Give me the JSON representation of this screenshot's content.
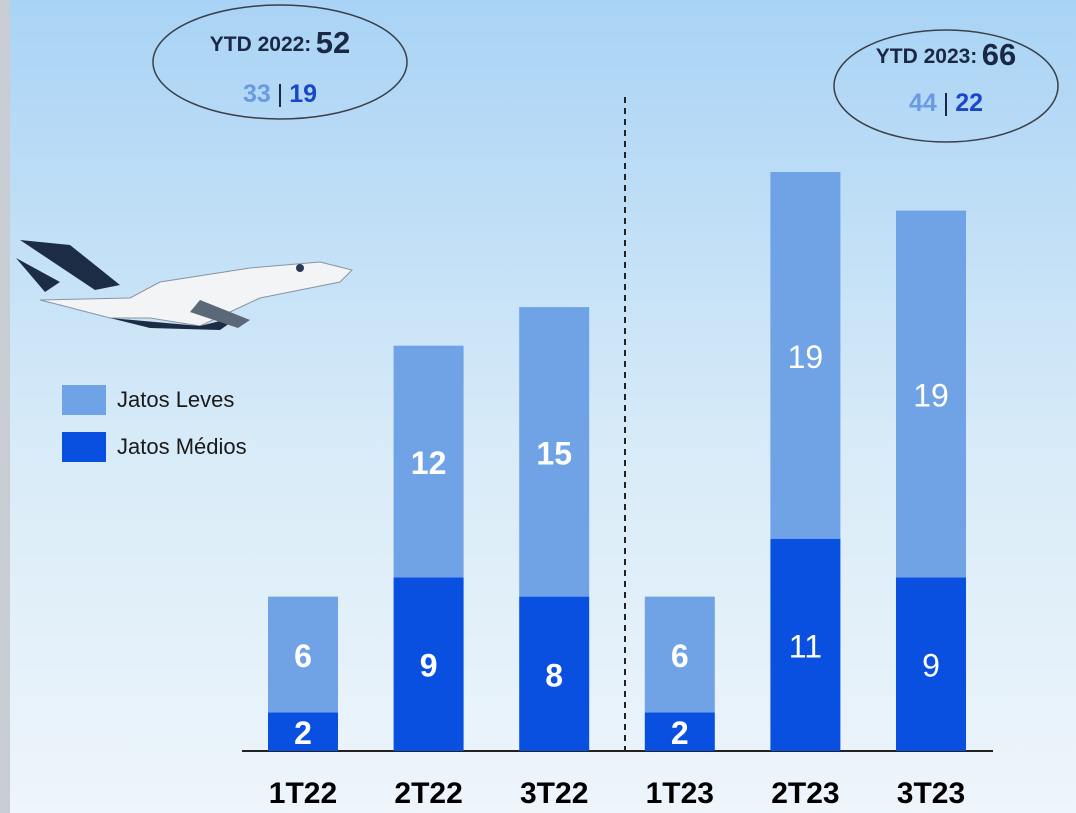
{
  "chart_data": {
    "type": "stacked_bar",
    "categories": [
      "1T22",
      "2T22",
      "3T22",
      "1T23",
      "2T23",
      "3T23"
    ],
    "series": [
      {
        "name": "Jatos Médios",
        "color": "#0a50e0",
        "values": [
          2,
          9,
          8,
          2,
          11,
          9
        ]
      },
      {
        "name": "Jatos Leves",
        "color": "#70a2e6",
        "values": [
          6,
          12,
          15,
          6,
          19,
          19
        ]
      }
    ],
    "annotations": [
      {
        "label": "YTD 2022:",
        "total": 52,
        "light": 33,
        "separator": "|",
        "medium": 19
      },
      {
        "label": "YTD 2023:",
        "total": 66,
        "light": 44,
        "separator": "|",
        "medium": 22
      }
    ]
  }
}
